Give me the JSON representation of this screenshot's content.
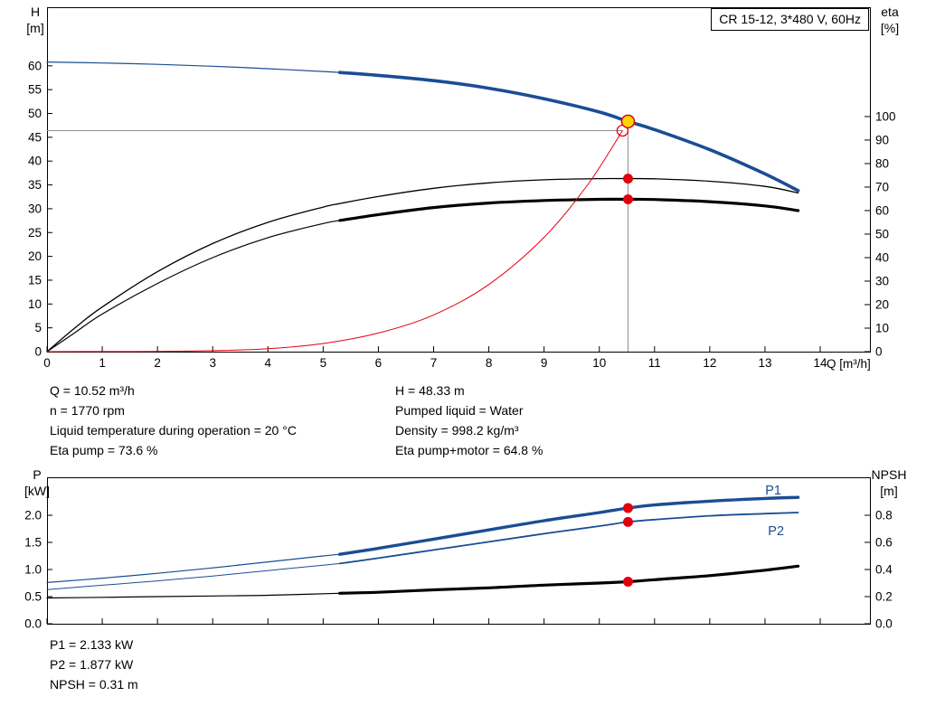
{
  "panel_title": "CR 15-12, 3*480 V, 60Hz",
  "colors": {
    "blue": "#1a4d94",
    "red": "#e2000f",
    "black": "#000000",
    "yellow": "#ffd500",
    "gray": "#909090"
  },
  "chart_data": [
    {
      "type": "line",
      "id": "head_and_efficiency",
      "title": "CR 15-12, 3*480 V, 60Hz",
      "x_axis": {
        "label": "Q [m³/h]",
        "min": 0,
        "max": 14.9,
        "tick_step": 1,
        "ticks_to": 14,
        "decimals": 0,
        "show_labels": true
      },
      "y_left": {
        "label": "H",
        "unit": "[m]",
        "min": 0,
        "max": 72.3,
        "tick_step": 5,
        "ticks_to": 60,
        "decimals": 0
      },
      "y_right": {
        "label": "eta",
        "unit": "[%]",
        "min": 0,
        "max": 146.5,
        "tick_step": 10,
        "ticks_to": 100,
        "decimals": 0
      },
      "grid": false,
      "series": [
        {
          "name": "pump-head-curve",
          "axis": "left",
          "color": "blue",
          "thin": 1.2,
          "thick": 3.6,
          "split_q": 5.3,
          "points": [
            [
              0,
              60.8
            ],
            [
              1,
              60.6
            ],
            [
              2,
              60.3
            ],
            [
              3,
              59.9
            ],
            [
              4,
              59.4
            ],
            [
              5,
              58.8
            ],
            [
              5.3,
              58.6
            ],
            [
              6,
              58.0
            ],
            [
              7,
              56.9
            ],
            [
              8,
              55.3
            ],
            [
              9,
              53.1
            ],
            [
              10,
              50.3
            ],
            [
              10.52,
              48.33
            ],
            [
              11,
              46.6
            ],
            [
              12,
              42.4
            ],
            [
              13,
              37.3
            ],
            [
              13.6,
              33.8
            ]
          ]
        },
        {
          "name": "eta-pump-curve",
          "axis": "right",
          "color": "black",
          "thin": 1.3,
          "points": [
            [
              0,
              0
            ],
            [
              0.5,
              10
            ],
            [
              1,
              19
            ],
            [
              2,
              34
            ],
            [
              3,
              46
            ],
            [
              4,
              55
            ],
            [
              5,
              61.5
            ],
            [
              5.3,
              63
            ],
            [
              6,
              66
            ],
            [
              7,
              69.5
            ],
            [
              8,
              71.8
            ],
            [
              9,
              73.1
            ],
            [
              10,
              73.6
            ],
            [
              10.52,
              73.6
            ],
            [
              11,
              73.5
            ],
            [
              12,
              72.5
            ],
            [
              13,
              70.3
            ],
            [
              13.6,
              67.5
            ]
          ]
        },
        {
          "name": "eta-pump-motor-curve",
          "axis": "right",
          "color": "black",
          "thin": 1.2,
          "thick": 3.2,
          "split_q": 5.3,
          "points": [
            [
              0,
              0
            ],
            [
              0.5,
              8
            ],
            [
              1,
              16
            ],
            [
              2,
              29
            ],
            [
              3,
              40
            ],
            [
              4,
              48.5
            ],
            [
              5,
              54.5
            ],
            [
              5.3,
              55.8
            ],
            [
              6,
              58.3
            ],
            [
              7,
              61.3
            ],
            [
              8,
              63.2
            ],
            [
              9,
              64.3
            ],
            [
              10,
              64.8
            ],
            [
              10.52,
              64.8
            ],
            [
              11,
              64.7
            ],
            [
              12,
              63.8
            ],
            [
              13,
              62.0
            ],
            [
              13.6,
              60.0
            ]
          ]
        },
        {
          "name": "system-resulting-curve",
          "axis": "left",
          "color": "red",
          "thin": 1,
          "points": [
            [
              0,
              0
            ],
            [
              1,
              0.02
            ],
            [
              2,
              0.05
            ],
            [
              3,
              0.2
            ],
            [
              4,
              0.6
            ],
            [
              5,
              1.7
            ],
            [
              6,
              3.9
            ],
            [
              7,
              7.7
            ],
            [
              8,
              14.1
            ],
            [
              9,
              24.0
            ],
            [
              9.8,
              35.2
            ],
            [
              10.42,
              46.4
            ]
          ]
        }
      ],
      "crosshair": {
        "color": "gray",
        "v_x": 10.52,
        "v_y_to": 48.33,
        "v_axis": "left",
        "h_y": 46.4,
        "h_x_to": 10.42,
        "h_axis": "left"
      },
      "markers": [
        {
          "name": "eta-pump-duty-dot",
          "x": 10.52,
          "y": 73.6,
          "axis": "right",
          "r": 5.5,
          "fill": "red"
        },
        {
          "name": "eta-pump-motor-duty-dot",
          "x": 10.52,
          "y": 64.8,
          "axis": "right",
          "r": 5.5,
          "fill": "red"
        },
        {
          "name": "system-curve-intersection-marker",
          "x": 10.42,
          "y": 46.4,
          "axis": "left",
          "r": 6,
          "fill": "none",
          "stroke": "red",
          "sw": 1.3
        },
        {
          "name": "duty-point-marker",
          "x": 10.52,
          "y": 48.33,
          "axis": "left",
          "r": 7,
          "fill": "yellow",
          "stroke": "red",
          "sw": 1.5,
          "interactable": true
        }
      ],
      "point_labels": []
    },
    {
      "type": "line",
      "id": "power_and_npsh",
      "x_axis": {
        "min": 0,
        "max": 14.9,
        "tick_step": 1,
        "ticks_to": 14,
        "decimals": 0,
        "show_labels": false
      },
      "y_left": {
        "label": "P",
        "unit": "[kW]",
        "min": 0,
        "max": 2.7,
        "tick_step": 0.5,
        "ticks_to": 2.0,
        "decimals": 1
      },
      "y_right": {
        "label": "NPSH",
        "unit": "[m]",
        "min": 0,
        "max": 1.08,
        "tick_step": 0.2,
        "ticks_to": 0.8,
        "decimals": 1
      },
      "grid": false,
      "series": [
        {
          "name": "p1-power-curve",
          "axis": "left",
          "color": "blue",
          "thin": 1.2,
          "thick": 3.4,
          "split_q": 5.3,
          "points": [
            [
              0,
              0.76
            ],
            [
              1,
              0.84
            ],
            [
              2,
              0.93
            ],
            [
              3,
              1.03
            ],
            [
              4,
              1.14
            ],
            [
              5,
              1.25
            ],
            [
              5.3,
              1.28
            ],
            [
              6,
              1.39
            ],
            [
              7,
              1.56
            ],
            [
              8,
              1.73
            ],
            [
              9,
              1.9
            ],
            [
              10,
              2.05
            ],
            [
              10.52,
              2.133
            ],
            [
              11,
              2.19
            ],
            [
              12,
              2.26
            ],
            [
              13,
              2.31
            ],
            [
              13.6,
              2.33
            ]
          ]
        },
        {
          "name": "p2-power-curve",
          "axis": "left",
          "color": "blue",
          "thin": 1,
          "thick": 1.8,
          "split_q": 5.3,
          "points": [
            [
              0,
              0.63
            ],
            [
              1,
              0.71
            ],
            [
              2,
              0.79
            ],
            [
              3,
              0.88
            ],
            [
              4,
              0.98
            ],
            [
              5,
              1.08
            ],
            [
              5.3,
              1.11
            ],
            [
              6,
              1.21
            ],
            [
              7,
              1.36
            ],
            [
              8,
              1.51
            ],
            [
              9,
              1.66
            ],
            [
              10,
              1.8
            ],
            [
              10.52,
              1.877
            ],
            [
              11,
              1.92
            ],
            [
              12,
              1.99
            ],
            [
              13,
              2.03
            ],
            [
              13.6,
              2.05
            ]
          ]
        },
        {
          "name": "npsh-curve",
          "axis": "right",
          "color": "black",
          "thin": 1.2,
          "thick": 3.2,
          "split_q": 5.3,
          "points": [
            [
              0,
              0.19
            ],
            [
              1,
              0.195
            ],
            [
              2,
              0.2
            ],
            [
              3,
              0.205
            ],
            [
              4,
              0.21
            ],
            [
              5.3,
              0.225
            ],
            [
              6,
              0.232
            ],
            [
              7,
              0.25
            ],
            [
              8,
              0.265
            ],
            [
              9,
              0.285
            ],
            [
              10,
              0.3
            ],
            [
              10.52,
              0.31
            ],
            [
              11,
              0.325
            ],
            [
              12,
              0.355
            ],
            [
              13,
              0.395
            ],
            [
              13.6,
              0.425
            ]
          ]
        }
      ],
      "markers": [
        {
          "name": "p1-duty-dot",
          "x": 10.52,
          "y": 2.133,
          "axis": "left",
          "r": 5.5,
          "fill": "red"
        },
        {
          "name": "p2-duty-dot",
          "x": 10.52,
          "y": 1.877,
          "axis": "left",
          "r": 5.5,
          "fill": "red"
        },
        {
          "name": "npsh-duty-dot",
          "x": 10.52,
          "y": 0.31,
          "axis": "right",
          "r": 5.5,
          "fill": "red"
        }
      ],
      "point_labels": [
        {
          "text": "P1",
          "x": 13.15,
          "y": 2.38,
          "axis": "left",
          "color": "blue"
        },
        {
          "text": "P2",
          "x": 13.2,
          "y": 1.63,
          "axis": "left",
          "color": "blue"
        }
      ]
    }
  ],
  "annotations": {
    "left": [
      "Q = 10.52 m³/h",
      "n = 1770 rpm",
      "Liquid temperature during operation = 20 °C",
      "Eta pump = 73.6 %"
    ],
    "right": [
      "H = 48.33 m",
      "Pumped liquid = Water",
      "Density = 998.2 kg/m³",
      "Eta pump+motor = 64.8 %"
    ],
    "bottom": [
      "P1 = 2.133 kW",
      "P2 = 1.877 kW",
      "NPSH = 0.31 m"
    ]
  }
}
